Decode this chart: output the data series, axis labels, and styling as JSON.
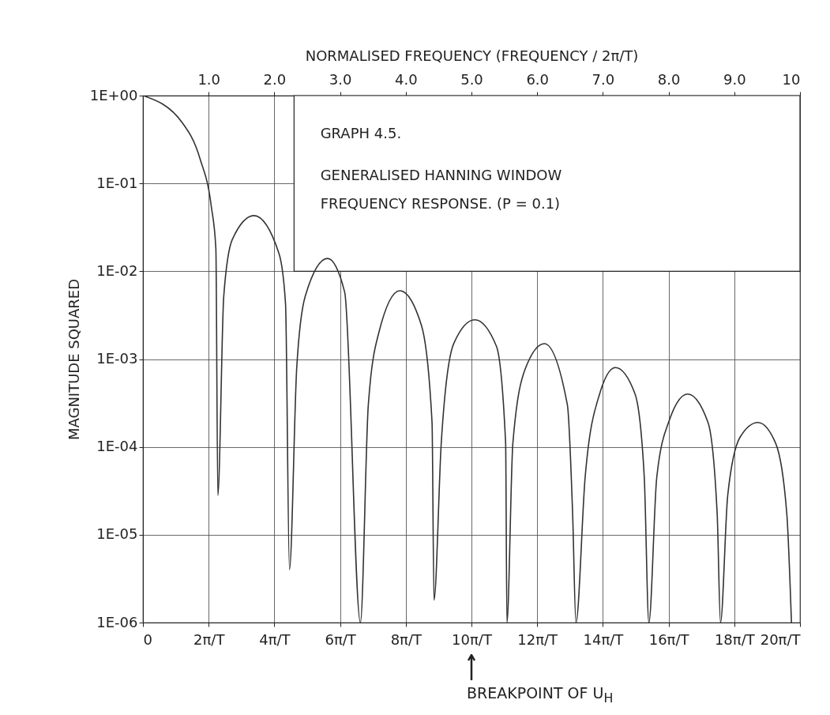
{
  "chart_data": {
    "type": "line",
    "title": "GRAPH 4.5.",
    "subtitle": "GENERALISED HANNING WINDOW\nFREQUENCY RESPONSE. (P = 0.1)",
    "ylabel": "MAGNITUDE SQUARED",
    "x2label": "NORMALISED FREQUENCY (FREQUENCY / 2π/T)",
    "x": [
      0,
      1.2,
      1.74,
      2.08,
      2.22,
      2.28,
      2.46,
      2.72,
      3.38,
      4.14,
      4.34,
      4.46,
      4.68,
      4.94,
      5.62,
      6.14,
      6.62,
      6.86,
      7.18,
      7.82,
      8.48,
      8.8,
      8.86,
      9.08,
      9.46,
      10.1,
      10.76,
      11.04,
      11.08,
      11.26,
      11.64,
      12.22,
      12.92,
      13.08,
      13.18,
      13.46,
      13.9,
      14.38,
      14.98,
      15.26,
      15.4,
      15.64,
      16.02,
      16.58,
      17.2,
      17.48,
      17.58,
      17.8,
      18.18,
      18.72,
      19.26,
      19.6,
      19.74
    ],
    "values": [
      1,
      0.49,
      0.19,
      0.055,
      0.018,
      2.8e-05,
      0.0052,
      0.023,
      0.043,
      0.016,
      0.0043,
      4e-06,
      0.00078,
      0.0052,
      0.014,
      0.0058,
      1e-06,
      0.0003,
      0.002,
      0.006,
      0.0024,
      0.00019,
      1.8e-06,
      0.00011,
      0.0015,
      0.0028,
      0.0014,
      0.00011,
      1e-06,
      0.00011,
      0.00078,
      0.0015,
      0.0003,
      1.7e-05,
      1e-06,
      4.5e-05,
      0.0004,
      0.0008,
      0.0004,
      4.5e-05,
      1e-06,
      4.5e-05,
      0.0002,
      0.0004,
      0.00019,
      1.7e-05,
      1e-06,
      2.8e-05,
      0.00013,
      0.00019,
      0.00011,
      1.7e-05,
      1e-06
    ],
    "color": "#333333",
    "log": "y",
    "grid": true,
    "xlim": [
      0,
      20
    ],
    "ylim": [
      1e-06,
      1
    ],
    "xticks": [
      0,
      {
        "value": 2,
        "label": "2π/T"
      },
      {
        "value": 4,
        "label": "4π/T"
      },
      {
        "value": 6,
        "label": "6π/T"
      },
      {
        "value": 8,
        "label": "8π/T"
      },
      {
        "value": 10,
        "label": "10π/T"
      },
      {
        "value": 12,
        "label": "12π/T"
      },
      {
        "value": 14,
        "label": "14π/T"
      },
      {
        "value": 16,
        "label": "16π/T"
      },
      {
        "value": 18,
        "label": "18π/T"
      },
      {
        "value": 20,
        "label": "20π/T"
      }
    ],
    "x2lim": [
      0,
      10
    ],
    "x2ticks": [
      {
        "value": 1,
        "label": "1.0"
      },
      {
        "value": 2,
        "label": "2.0"
      },
      {
        "value": 3,
        "label": "3.0"
      },
      {
        "value": 4,
        "label": "4.0"
      },
      {
        "value": 5,
        "label": "5.0"
      },
      {
        "value": 6,
        "label": "6.0"
      },
      {
        "value": 7,
        "label": "7.0"
      },
      {
        "value": 8,
        "label": "8.0"
      },
      {
        "value": 9,
        "label": "9.0"
      },
      10
    ],
    "yticks": [
      {
        "value": 1,
        "label": "1E+00"
      },
      {
        "value": 0.1,
        "label": "1E-01"
      },
      {
        "value": 0.01,
        "label": "1E-02"
      },
      {
        "value": 0.001,
        "label": "1E-03"
      },
      {
        "value": 0.0001,
        "label": "1E-04"
      },
      {
        "value": 1e-05,
        "label": "1E-05"
      },
      {
        "value": 1e-06,
        "label": "1E-06"
      }
    ],
    "annotations": [
      "BREAKPOINT OF U$_{H}$"
    ]
  }
}
